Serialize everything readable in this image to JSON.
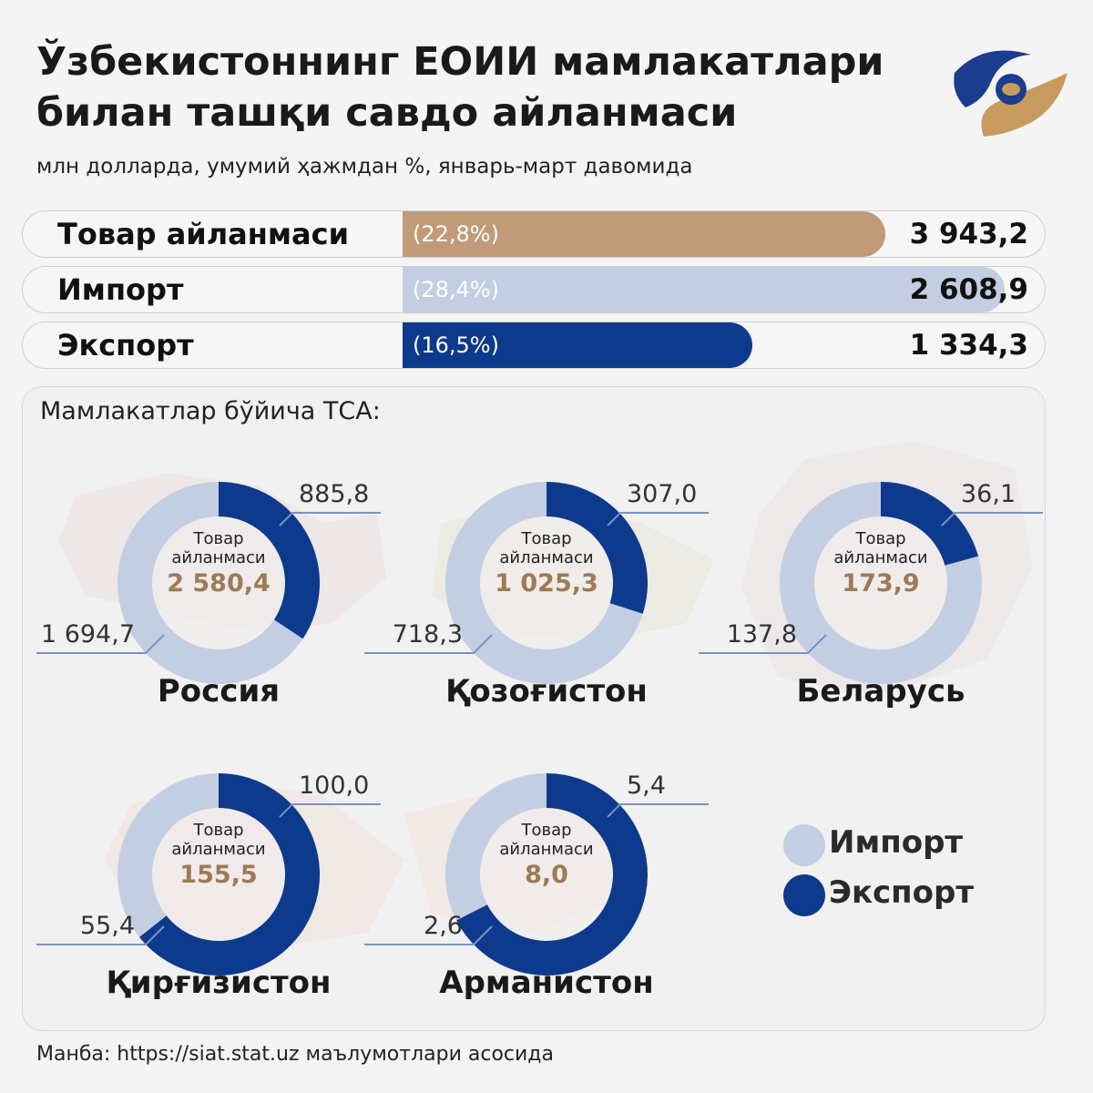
{
  "header": {
    "title_line1": "Ўзбекистоннинг ЕОИИ мамлакатлари",
    "title_line2": "билан ташқи савдо айланмаси",
    "subtitle": "млн долларда, умумий ҳажмдан %, январь-март давомида"
  },
  "colors": {
    "import": "#c3cee2",
    "export": "#0d3a8c",
    "turnover": "#c19a78",
    "center_value": "#9e7a55"
  },
  "summary_bars": [
    {
      "label": "Товар айланмаси",
      "percent": "(22,8%)",
      "share": 22.8,
      "value": "3 943,2",
      "color": "#c19a78",
      "text_color": "#ffffff"
    },
    {
      "label": "Импорт",
      "percent": "(28,4%)",
      "share": 28.4,
      "value": "2 608,9",
      "color": "#c3cee2",
      "text_color": "#ffffff"
    },
    {
      "label": "Экспорт",
      "percent": "(16,5%)",
      "share": 16.5,
      "value": "1 334,3",
      "color": "#0d3a8c",
      "text_color": "#ffffff"
    }
  ],
  "panel_title": "Мамлакатлар бўйича ТСА:",
  "chart_data": {
    "type": "pie",
    "center_label": "Товар айланмаси",
    "series_names": [
      "Импорт",
      "Экспорт"
    ],
    "countries": [
      {
        "name": "Россия",
        "total": "2 580,4",
        "import": 1694.7,
        "export": 885.8,
        "import_label": "1 694,7",
        "export_label": "885,8"
      },
      {
        "name": "Қозоғистон",
        "total": "1 025,3",
        "import": 718.3,
        "export": 307.0,
        "import_label": "718,3",
        "export_label": "307,0"
      },
      {
        "name": "Беларусь",
        "total": "173,9",
        "import": 137.8,
        "export": 36.1,
        "import_label": "137,8",
        "export_label": "36,1"
      },
      {
        "name": "Қирғизистон",
        "total": "155,5",
        "import": 55.4,
        "export": 100.0,
        "import_label": "55,4",
        "export_label": "100,0"
      },
      {
        "name": "Арманистон",
        "total": "8,0",
        "import": 2.6,
        "export": 5.4,
        "import_label": "2,6",
        "export_label": "5,4"
      }
    ]
  },
  "legend": {
    "import": "Импорт",
    "export": "Экспорт"
  },
  "source": "Манба: https://siat.stat.uz маълумотлари асосида"
}
